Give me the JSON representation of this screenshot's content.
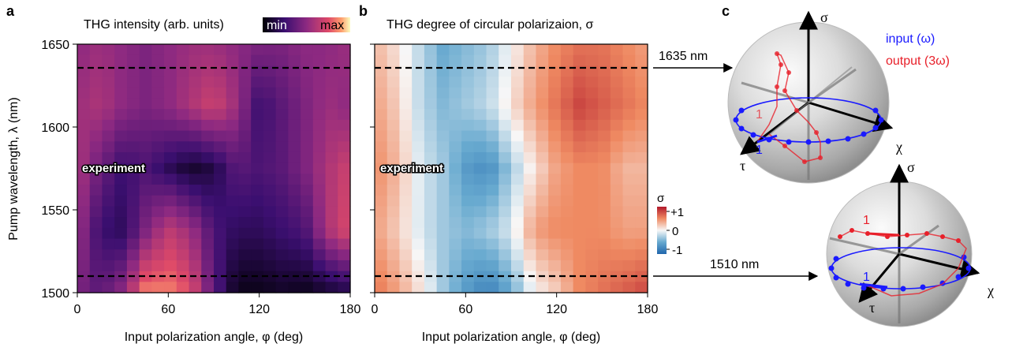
{
  "panels": {
    "a": {
      "letter": "a",
      "title": "THG intensity (arb. units)",
      "colorbar_min": "min",
      "colorbar_max": "max",
      "inset_label": "experiment"
    },
    "b": {
      "letter": "b",
      "title": "THG degree of circular polarizaion, σ",
      "inset_label": "experiment",
      "colorbar_title": "σ",
      "colorbar_ticks": [
        "+1",
        "0",
        "-1"
      ]
    },
    "c": {
      "letter": "c",
      "legend_input": "input (ω)",
      "legend_output": "output (3ω)",
      "arrow_top_label": "1635 nm",
      "arrow_bottom_label": "1510 nm",
      "axis_sigma": "σ",
      "axis_chi": "χ",
      "axis_tau": "τ",
      "start_marker": "1",
      "colors": {
        "input": "#1a1aff",
        "output": "#e8202a"
      }
    }
  },
  "chart_data": [
    {
      "type": "heatmap",
      "title": "THG intensity (arb. units)",
      "xlabel": "Input polarization angle, φ (deg)",
      "ylabel": "Pump wavelength, λ (nm)",
      "xlim": [
        0,
        180
      ],
      "ylim": [
        1500,
        1650
      ],
      "xticks": [
        "0",
        "60",
        "120",
        "180"
      ],
      "yticks": [
        "1500",
        "1550",
        "1600",
        "1650"
      ],
      "colormap": "magma",
      "dashed_lines_y": [
        1635,
        1510
      ],
      "x_step_deg": 8.2,
      "y_values_nm": [
        1500,
        1545,
        1590,
        1645,
        1650
      ],
      "intensity_rows": [
        [
          0.45,
          0.35,
          0.5,
          0.85,
          0.85,
          0.75,
          0.35,
          0.05,
          0.05,
          0.08,
          0.05,
          0.1,
          0.15
        ],
        [
          0.55,
          0.25,
          0.2,
          0.45,
          0.65,
          0.55,
          0.3,
          0.2,
          0.2,
          0.25,
          0.3,
          0.6,
          0.75
        ],
        [
          0.6,
          0.4,
          0.25,
          0.3,
          0.2,
          0.1,
          0.15,
          0.35,
          0.3,
          0.35,
          0.45,
          0.6,
          0.7
        ],
        [
          0.55,
          0.6,
          0.5,
          0.45,
          0.5,
          0.6,
          0.7,
          0.55,
          0.25,
          0.35,
          0.45,
          0.55,
          0.5
        ],
        [
          0.5,
          0.55,
          0.5,
          0.45,
          0.5,
          0.55,
          0.55,
          0.5,
          0.45,
          0.45,
          0.5,
          0.5,
          0.55
        ]
      ]
    },
    {
      "type": "heatmap",
      "title": "THG degree of circular polarizaion, σ",
      "xlabel": "Input polarization angle, φ (deg)",
      "xlim": [
        0,
        180
      ],
      "ylim": [
        1500,
        1650
      ],
      "xticks": [
        "0",
        "60",
        "120",
        "180"
      ],
      "colormap": "RdBu",
      "zlim": [
        -1,
        1
      ],
      "dashed_lines_y": [
        1635,
        1510
      ],
      "x_step_deg": 8.2,
      "y_values_nm": [
        1500,
        1545,
        1590,
        1645,
        1650
      ],
      "sigma_rows": [
        [
          0.6,
          0.4,
          0.1,
          -0.3,
          -0.6,
          -0.8,
          -0.5,
          0.0,
          0.2,
          0.5,
          0.6,
          0.7,
          0.8
        ],
        [
          0.4,
          0.2,
          -0.1,
          -0.3,
          -0.4,
          -0.3,
          -0.1,
          0.4,
          0.5,
          0.5,
          0.5,
          0.4,
          0.4
        ],
        [
          0.5,
          0.3,
          -0.1,
          -0.3,
          -0.6,
          -0.7,
          -0.3,
          0.1,
          0.4,
          0.5,
          0.5,
          0.3,
          0.3
        ],
        [
          0.4,
          0.2,
          -0.2,
          -0.4,
          -0.3,
          -0.2,
          0.1,
          0.4,
          0.6,
          0.8,
          0.7,
          0.6,
          0.5
        ],
        [
          0.3,
          0.1,
          -0.2,
          -0.5,
          -0.4,
          -0.3,
          0.0,
          0.3,
          0.5,
          0.6,
          0.6,
          0.5,
          0.4
        ]
      ]
    }
  ]
}
